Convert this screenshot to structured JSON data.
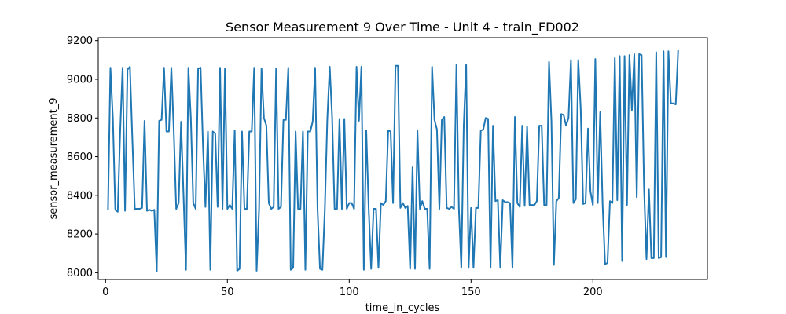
{
  "chart_data": {
    "type": "line",
    "title": "Sensor Measurement 9 Over Time - Unit 4 - train_FD002",
    "xlabel": "time_in_cycles",
    "ylabel": "sensor_measurement_9",
    "xlim": [
      -3,
      247
    ],
    "ylim": [
      7965,
      9215
    ],
    "xticks": [
      0,
      50,
      100,
      150,
      200
    ],
    "yticks": [
      8000,
      8200,
      8400,
      8600,
      8800,
      9000,
      9200
    ],
    "grid": false,
    "legend": "none",
    "series": [
      {
        "color": "#1f77b4",
        "x": [
          1,
          2,
          3,
          4,
          5,
          6,
          7,
          8,
          9,
          10,
          11,
          12,
          13,
          14,
          15,
          16,
          17,
          18,
          19,
          20,
          21,
          22,
          23,
          24,
          25,
          26,
          27,
          28,
          29,
          30,
          31,
          32,
          33,
          34,
          35,
          36,
          37,
          38,
          39,
          40,
          41,
          42,
          43,
          44,
          45,
          46,
          47,
          48,
          49,
          50,
          51,
          52,
          53,
          54,
          55,
          56,
          57,
          58,
          59,
          60,
          61,
          62,
          63,
          64,
          65,
          66,
          67,
          68,
          69,
          70,
          71,
          72,
          73,
          74,
          75,
          76,
          77,
          78,
          79,
          80,
          81,
          82,
          83,
          84,
          85,
          86,
          87,
          88,
          89,
          90,
          91,
          92,
          93,
          94,
          95,
          96,
          97,
          98,
          99,
          100,
          101,
          102,
          103,
          104,
          105,
          106,
          107,
          108,
          109,
          110,
          111,
          112,
          113,
          114,
          115,
          116,
          117,
          118,
          119,
          120,
          121,
          122,
          123,
          124,
          125,
          126,
          127,
          128,
          129,
          130,
          131,
          132,
          133,
          134,
          135,
          136,
          137,
          138,
          139,
          140,
          141,
          142,
          143,
          144,
          145,
          146,
          147,
          148,
          149,
          150,
          151,
          152,
          153,
          154,
          155,
          156,
          157,
          158,
          159,
          160,
          161,
          162,
          163,
          164,
          165,
          166,
          167,
          168,
          169,
          170,
          171,
          172,
          173,
          174,
          175,
          176,
          177,
          178,
          179,
          180,
          181,
          182,
          183,
          184,
          185,
          186,
          187,
          188,
          189,
          190,
          191,
          192,
          193,
          194,
          195,
          196,
          197,
          198,
          199,
          200,
          201,
          202,
          203,
          204,
          205,
          206,
          207,
          208,
          209,
          210,
          211,
          212,
          213,
          214,
          215,
          216,
          217,
          218,
          219,
          220,
          221,
          222,
          223,
          224,
          225,
          226,
          227,
          228,
          229,
          230,
          231,
          232,
          233,
          234,
          235
        ],
        "y": [
          8325,
          9060,
          8800,
          8325,
          8315,
          8730,
          9060,
          8320,
          9050,
          9065,
          8690,
          8330,
          8330,
          8330,
          8335,
          8785,
          8320,
          8325,
          8320,
          8325,
          8005,
          8785,
          8790,
          9060,
          8730,
          8730,
          9060,
          8730,
          8330,
          8360,
          8780,
          8400,
          8015,
          9060,
          8800,
          8360,
          8330,
          9055,
          9060,
          8650,
          8340,
          8730,
          8015,
          8730,
          8720,
          8340,
          9060,
          8330,
          9055,
          8330,
          8350,
          8330,
          8735,
          8010,
          8020,
          8730,
          8330,
          8330,
          8730,
          8730,
          9060,
          8010,
          8330,
          9055,
          8800,
          8760,
          8360,
          8330,
          8340,
          9055,
          8330,
          8340,
          8790,
          8790,
          9060,
          8015,
          8025,
          8730,
          8330,
          8330,
          8730,
          8015,
          8730,
          8730,
          8780,
          9060,
          8330,
          8020,
          8015,
          8330,
          8790,
          9065,
          8800,
          8330,
          8330,
          8795,
          8330,
          8795,
          8330,
          8360,
          8360,
          8330,
          9065,
          8785,
          9065,
          8015,
          8735,
          8330,
          8020,
          8330,
          8330,
          8025,
          8360,
          8350,
          8370,
          8735,
          8730,
          8360,
          9070,
          9070,
          8335,
          8360,
          8335,
          8345,
          8020,
          8545,
          8020,
          8735,
          8330,
          8370,
          8330,
          8330,
          8020,
          9065,
          8790,
          8740,
          8330,
          8790,
          8805,
          8335,
          8330,
          8340,
          8330,
          9075,
          8335,
          8025,
          8760,
          9075,
          8025,
          8335,
          8025,
          8335,
          8335,
          8735,
          8740,
          8800,
          8795,
          8025,
          8760,
          8370,
          8375,
          8025,
          8375,
          8365,
          8365,
          8360,
          8025,
          8805,
          8360,
          8340,
          8760,
          8345,
          8755,
          8350,
          8350,
          8350,
          8370,
          8760,
          8760,
          8350,
          8350,
          9090,
          8780,
          8040,
          8370,
          8385,
          8820,
          8815,
          8760,
          8800,
          9100,
          8360,
          8380,
          9100,
          8850,
          8355,
          8360,
          8745,
          8420,
          8350,
          9105,
          8360,
          8830,
          8350,
          8045,
          8050,
          8370,
          8360,
          9110,
          8375,
          9120,
          8060,
          9120,
          8350,
          9125,
          8840,
          9130,
          8390,
          9130,
          9125,
          8440,
          8070,
          8430,
          8075,
          8075,
          9140,
          8075,
          8080,
          9145,
          8080,
          9145,
          8875,
          8875,
          8870,
          9150
        ]
      }
    ]
  }
}
